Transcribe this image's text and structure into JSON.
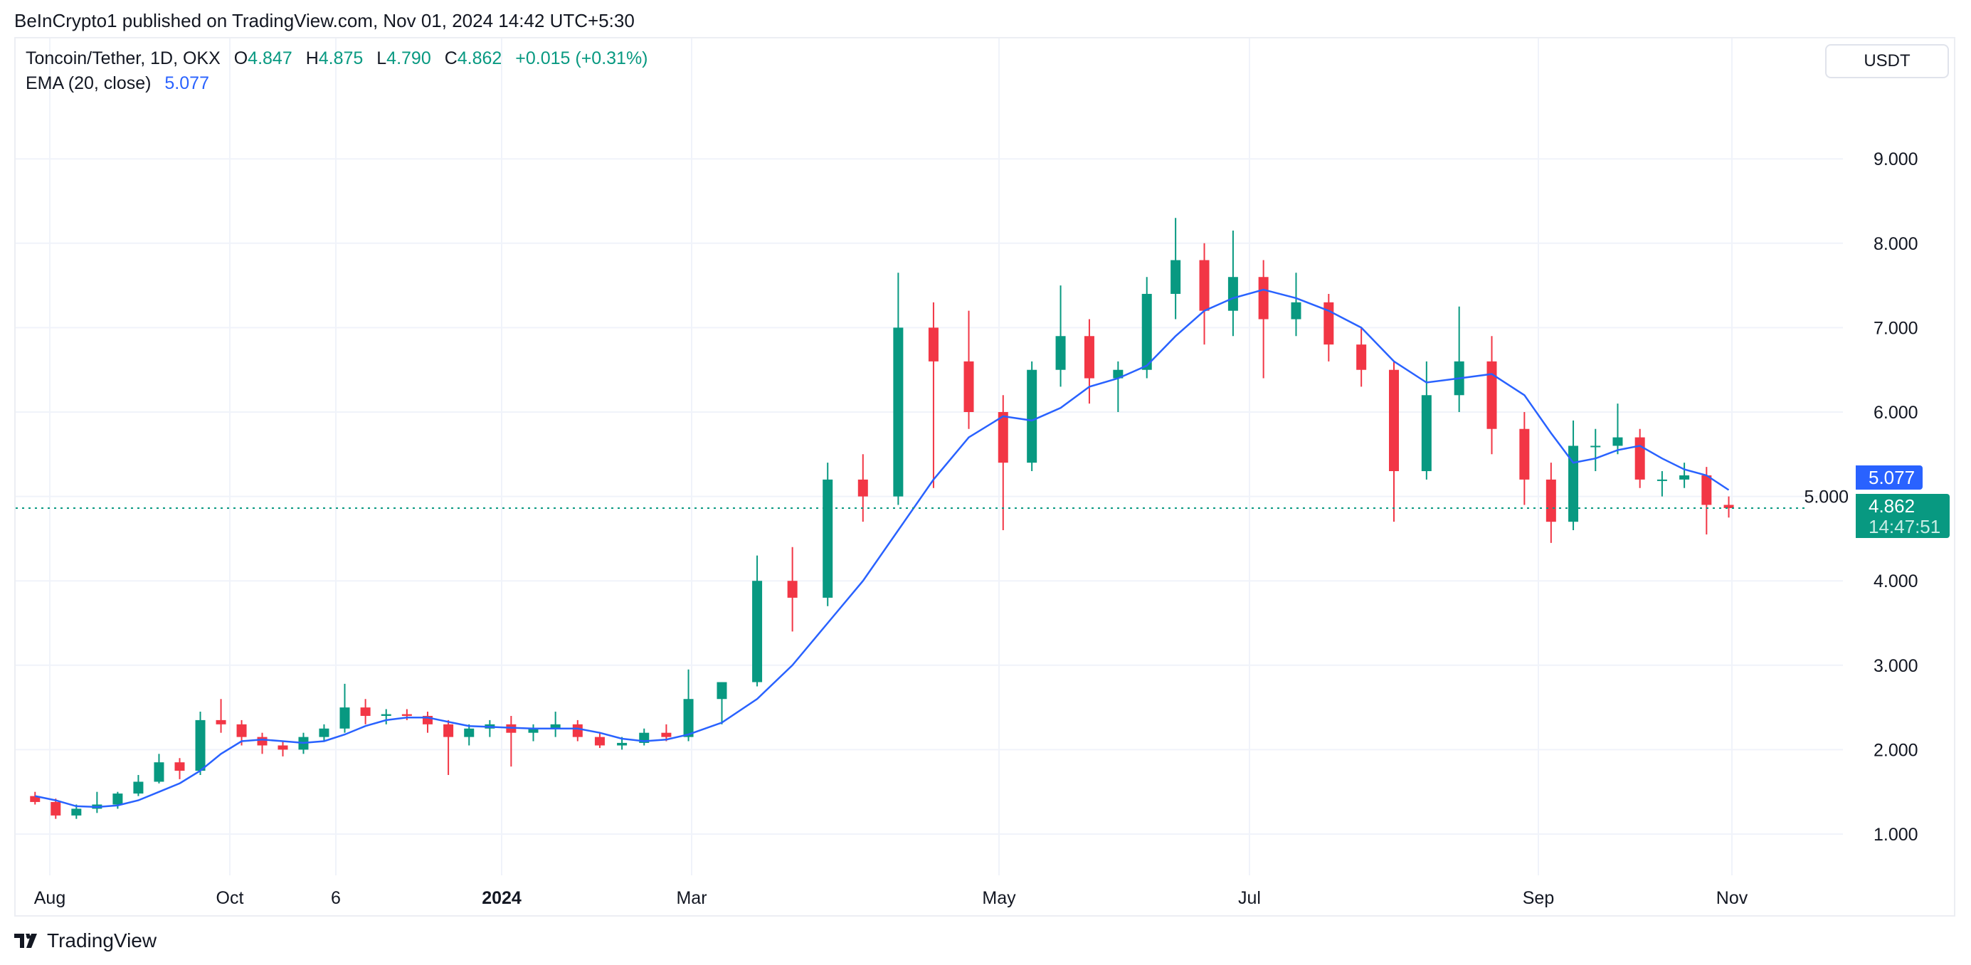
{
  "publisher": "BeInCrypto1 published on TradingView.com, Nov 01, 2024 14:42 UTC+5:30",
  "legend": {
    "symbol": "Toncoin/Tether, 1D, OKX",
    "o_label": "O",
    "o": "4.847",
    "h_label": "H",
    "h": "4.875",
    "l_label": "L",
    "l": "4.790",
    "c_label": "C",
    "c": "4.862",
    "change": "+0.015 (+0.31%)",
    "ema_label": "EMA (20, close)",
    "ema_value": "5.077"
  },
  "currency_button": "USDT",
  "price_tags": {
    "ema": "5.077",
    "last": "4.862",
    "countdown": "14:47:51"
  },
  "logo_text": "TradingView",
  "colors": {
    "up": "#089981",
    "down": "#f23645",
    "ema": "#2962ff",
    "grid": "#f0f3fa"
  },
  "chart_data": {
    "type": "candlestick",
    "ylim": [
      0.3,
      9.9
    ],
    "y_ticks": [
      "1.000",
      "2.000",
      "3.000",
      "4.000",
      "5.000",
      "6.000",
      "7.000",
      "8.000",
      "9.000"
    ],
    "x_ticks": [
      {
        "label": "Aug",
        "date": "2023-08-01"
      },
      {
        "label": "Oct",
        "date": "2023-10-01"
      },
      {
        "label": "6",
        "date": "2023-11-06"
      },
      {
        "label": "2024",
        "date": "2024-01-01",
        "bold": true
      },
      {
        "label": "Mar",
        "date": "2024-03-01"
      },
      {
        "label": "May",
        "date": "2024-05-01"
      },
      {
        "label": "Jul",
        "date": "2024-07-01"
      },
      {
        "label": "Sep",
        "date": "2024-09-01"
      },
      {
        "label": "Nov",
        "date": "2024-11-01"
      }
    ],
    "grid": true,
    "last_price": 4.862,
    "candles": [
      [
        "2023-07-24",
        1.45,
        1.5,
        1.35,
        1.38
      ],
      [
        "2023-07-31",
        1.38,
        1.42,
        1.18,
        1.22
      ],
      [
        "2023-08-07",
        1.22,
        1.35,
        1.18,
        1.3
      ],
      [
        "2023-08-14",
        1.3,
        1.5,
        1.25,
        1.35
      ],
      [
        "2023-08-21",
        1.35,
        1.5,
        1.3,
        1.48
      ],
      [
        "2023-08-28",
        1.48,
        1.7,
        1.45,
        1.62
      ],
      [
        "2023-09-04",
        1.62,
        1.95,
        1.6,
        1.85
      ],
      [
        "2023-09-11",
        1.85,
        1.9,
        1.65,
        1.75
      ],
      [
        "2023-09-18",
        1.75,
        2.45,
        1.7,
        2.35
      ],
      [
        "2023-09-25",
        2.35,
        2.6,
        2.2,
        2.3
      ],
      [
        "2023-10-02",
        2.3,
        2.35,
        2.05,
        2.15
      ],
      [
        "2023-10-09",
        2.15,
        2.2,
        1.95,
        2.05
      ],
      [
        "2023-10-16",
        2.05,
        2.1,
        1.92,
        2.0
      ],
      [
        "2023-10-23",
        2.0,
        2.2,
        1.95,
        2.15
      ],
      [
        "2023-10-30",
        2.15,
        2.3,
        2.1,
        2.25
      ],
      [
        "2023-11-06",
        2.25,
        2.78,
        2.2,
        2.5
      ],
      [
        "2023-11-13",
        2.5,
        2.6,
        2.3,
        2.4
      ],
      [
        "2023-11-20",
        2.4,
        2.48,
        2.3,
        2.42
      ],
      [
        "2023-11-27",
        2.42,
        2.48,
        2.35,
        2.4
      ],
      [
        "2023-12-04",
        2.4,
        2.45,
        2.2,
        2.3
      ],
      [
        "2023-12-11",
        2.3,
        2.35,
        1.7,
        2.15
      ],
      [
        "2023-12-18",
        2.15,
        2.3,
        2.05,
        2.25
      ],
      [
        "2023-12-25",
        2.25,
        2.35,
        2.15,
        2.3
      ],
      [
        "2024-01-01",
        2.3,
        2.4,
        1.8,
        2.2
      ],
      [
        "2024-01-08",
        2.2,
        2.3,
        2.1,
        2.25
      ],
      [
        "2024-01-15",
        2.25,
        2.45,
        2.15,
        2.3
      ],
      [
        "2024-01-22",
        2.3,
        2.35,
        2.1,
        2.15
      ],
      [
        "2024-01-29",
        2.15,
        2.2,
        2.02,
        2.05
      ],
      [
        "2024-02-05",
        2.05,
        2.15,
        2.0,
        2.08
      ],
      [
        "2024-02-12",
        2.08,
        2.25,
        2.05,
        2.2
      ],
      [
        "2024-02-19",
        2.2,
        2.3,
        2.1,
        2.15
      ],
      [
        "2024-02-26",
        2.15,
        2.95,
        2.1,
        2.6
      ],
      [
        "2024-03-04",
        2.6,
        2.8,
        2.3,
        2.8
      ],
      [
        "2024-03-11",
        2.8,
        4.3,
        2.75,
        4.0
      ],
      [
        "2024-03-18",
        4.0,
        4.4,
        3.4,
        3.8
      ],
      [
        "2024-03-25",
        3.8,
        5.4,
        3.7,
        5.2
      ],
      [
        "2024-04-01",
        5.2,
        5.5,
        4.7,
        5.0
      ],
      [
        "2024-04-08",
        5.0,
        7.65,
        4.9,
        7.0
      ],
      [
        "2024-04-15",
        7.0,
        7.3,
        5.1,
        6.6
      ],
      [
        "2024-04-22",
        6.6,
        7.2,
        5.8,
        6.0
      ],
      [
        "2024-04-29",
        6.0,
        6.2,
        4.6,
        5.4
      ],
      [
        "2024-05-06",
        5.4,
        6.6,
        5.3,
        6.5
      ],
      [
        "2024-05-13",
        6.5,
        7.5,
        6.3,
        6.9
      ],
      [
        "2024-05-20",
        6.9,
        7.1,
        6.1,
        6.4
      ],
      [
        "2024-05-27",
        6.4,
        6.6,
        6.0,
        6.5
      ],
      [
        "2024-06-03",
        6.5,
        7.6,
        6.4,
        7.4
      ],
      [
        "2024-06-10",
        7.4,
        8.3,
        7.1,
        7.8
      ],
      [
        "2024-06-17",
        7.8,
        8.0,
        6.8,
        7.2
      ],
      [
        "2024-06-24",
        7.2,
        8.15,
        6.9,
        7.6
      ],
      [
        "2024-07-01",
        7.6,
        7.8,
        6.4,
        7.1
      ],
      [
        "2024-07-08",
        7.1,
        7.65,
        6.9,
        7.3
      ],
      [
        "2024-07-15",
        7.3,
        7.4,
        6.6,
        6.8
      ],
      [
        "2024-07-22",
        6.8,
        7.0,
        6.3,
        6.5
      ],
      [
        "2024-07-29",
        6.5,
        6.6,
        4.7,
        5.3
      ],
      [
        "2024-08-05",
        5.3,
        6.6,
        5.2,
        6.2
      ],
      [
        "2024-08-12",
        6.2,
        7.25,
        6.0,
        6.6
      ],
      [
        "2024-08-19",
        6.6,
        6.9,
        5.5,
        5.8
      ],
      [
        "2024-08-26",
        5.8,
        6.0,
        4.9,
        5.2
      ],
      [
        "2024-09-02",
        5.2,
        5.4,
        4.45,
        4.7
      ],
      [
        "2024-09-09",
        4.7,
        5.9,
        4.6,
        5.6
      ],
      [
        "2024-09-16",
        5.6,
        5.8,
        5.3,
        5.6
      ],
      [
        "2024-09-23",
        5.6,
        6.1,
        5.5,
        5.7
      ],
      [
        "2024-09-30",
        5.7,
        5.8,
        5.1,
        5.2
      ],
      [
        "2024-10-07",
        5.2,
        5.3,
        5.0,
        5.2
      ],
      [
        "2024-10-14",
        5.2,
        5.4,
        5.1,
        5.25
      ],
      [
        "2024-10-21",
        5.25,
        5.35,
        4.55,
        4.9
      ],
      [
        "2024-10-28",
        4.9,
        5.0,
        4.75,
        4.862
      ]
    ],
    "ema": [
      1.45,
      1.4,
      1.33,
      1.32,
      1.34,
      1.4,
      1.5,
      1.6,
      1.75,
      1.95,
      2.1,
      2.12,
      2.1,
      2.08,
      2.1,
      2.18,
      2.28,
      2.35,
      2.38,
      2.38,
      2.33,
      2.28,
      2.27,
      2.26,
      2.25,
      2.25,
      2.25,
      2.2,
      2.13,
      2.1,
      2.12,
      2.18,
      2.32,
      2.6,
      3.0,
      3.5,
      4.0,
      4.6,
      5.2,
      5.7,
      5.95,
      5.9,
      6.05,
      6.3,
      6.4,
      6.55,
      6.9,
      7.2,
      7.35,
      7.45,
      7.35,
      7.2,
      7.0,
      6.6,
      6.35,
      6.4,
      6.45,
      6.2,
      5.75,
      5.4,
      5.45,
      5.55,
      5.6,
      5.45,
      5.32,
      5.25,
      5.077
    ]
  }
}
